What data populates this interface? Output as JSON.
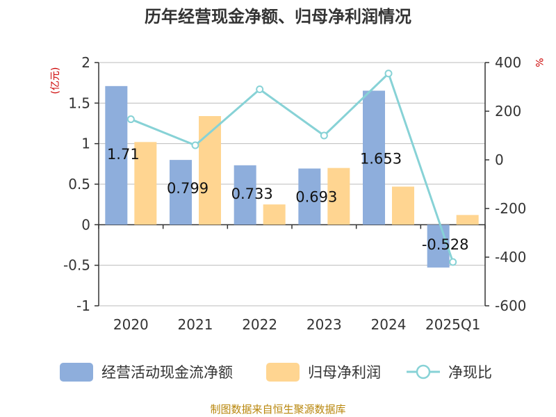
{
  "title": "历年经营现金净额、归母净利润情况",
  "source": "制图数据来自恒生聚源数据库",
  "colors": {
    "cash": "#8eaedc",
    "profit": "#ffd591",
    "ratio": "#87d2d6",
    "axis": "#333333",
    "grid": "#bbbbbb",
    "unit": "#cc0000",
    "source": "#b8860b"
  },
  "chart_data": {
    "type": "bar",
    "categories": [
      "2020",
      "2021",
      "2022",
      "2023",
      "2024",
      "2025Q1"
    ],
    "series": [
      {
        "name": "经营活动现金流净额",
        "kind": "bar",
        "axis": "left",
        "values": [
          1.71,
          0.799,
          0.733,
          0.693,
          1.653,
          -0.528
        ]
      },
      {
        "name": "归母净利润",
        "kind": "bar",
        "axis": "left",
        "values": [
          1.02,
          1.34,
          0.25,
          0.7,
          0.47,
          0.12
        ]
      },
      {
        "name": "净现比",
        "kind": "line",
        "axis": "right",
        "values": [
          167,
          60,
          290,
          100,
          355,
          -420
        ]
      }
    ],
    "data_labels": [
      "1.71",
      "0.799",
      "0.733",
      "0.693",
      "1.653",
      "-0.528"
    ],
    "y_left": {
      "label": "(亿元)",
      "min": -1,
      "max": 2,
      "ticks": [
        "2",
        "1.5",
        "1",
        "0.5",
        "0",
        "-0.5",
        "-1"
      ]
    },
    "y_right": {
      "label": "%",
      "min": -600,
      "max": 400,
      "ticks": [
        "400",
        "200",
        "0",
        "-200",
        "-400",
        "-600"
      ]
    },
    "grid": true,
    "legend_position": "bottom"
  }
}
